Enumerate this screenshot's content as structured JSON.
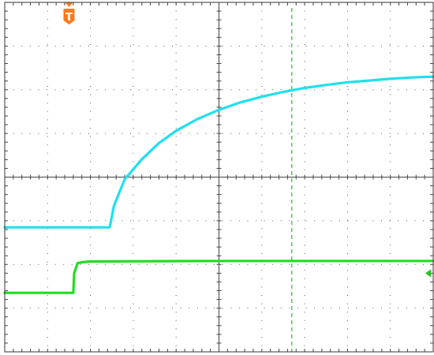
{
  "chart_data": {
    "type": "line",
    "title": "",
    "xlabel": "",
    "ylabel": "",
    "xlim": [
      -5,
      5
    ],
    "ylim": [
      -4,
      4
    ],
    "grid": true,
    "grid_divisions": {
      "x": 10,
      "y": 8
    },
    "trigger_marker": {
      "label": "T",
      "x": -3.5,
      "color": "#ff7a1a"
    },
    "cursor": {
      "x": 1.7,
      "color": "#22c322"
    },
    "channel_marker": {
      "y": -2.2,
      "color": "#22c322"
    },
    "series": [
      {
        "color": "#1ee0ef",
        "x": [
          -5.0,
          -2.55,
          -2.45,
          -2.2,
          -1.8,
          -1.4,
          -1.0,
          -0.5,
          0.0,
          0.5,
          1.0,
          1.5,
          2.0,
          2.5,
          3.0,
          3.5,
          4.0,
          4.5,
          5.0
        ],
        "y": [
          -1.15,
          -1.15,
          -0.65,
          -0.05,
          0.41,
          0.78,
          1.06,
          1.33,
          1.54,
          1.71,
          1.84,
          1.95,
          2.04,
          2.11,
          2.17,
          2.21,
          2.25,
          2.28,
          2.3
        ]
      },
      {
        "color": "#22dd22",
        "x": [
          -5.0,
          -3.4,
          -3.38,
          -3.3,
          -3.2,
          -3.0,
          0.0,
          5.0
        ],
        "y": [
          -2.65,
          -2.65,
          -2.2,
          -1.97,
          -1.95,
          -1.93,
          -1.92,
          -1.92
        ]
      }
    ]
  }
}
